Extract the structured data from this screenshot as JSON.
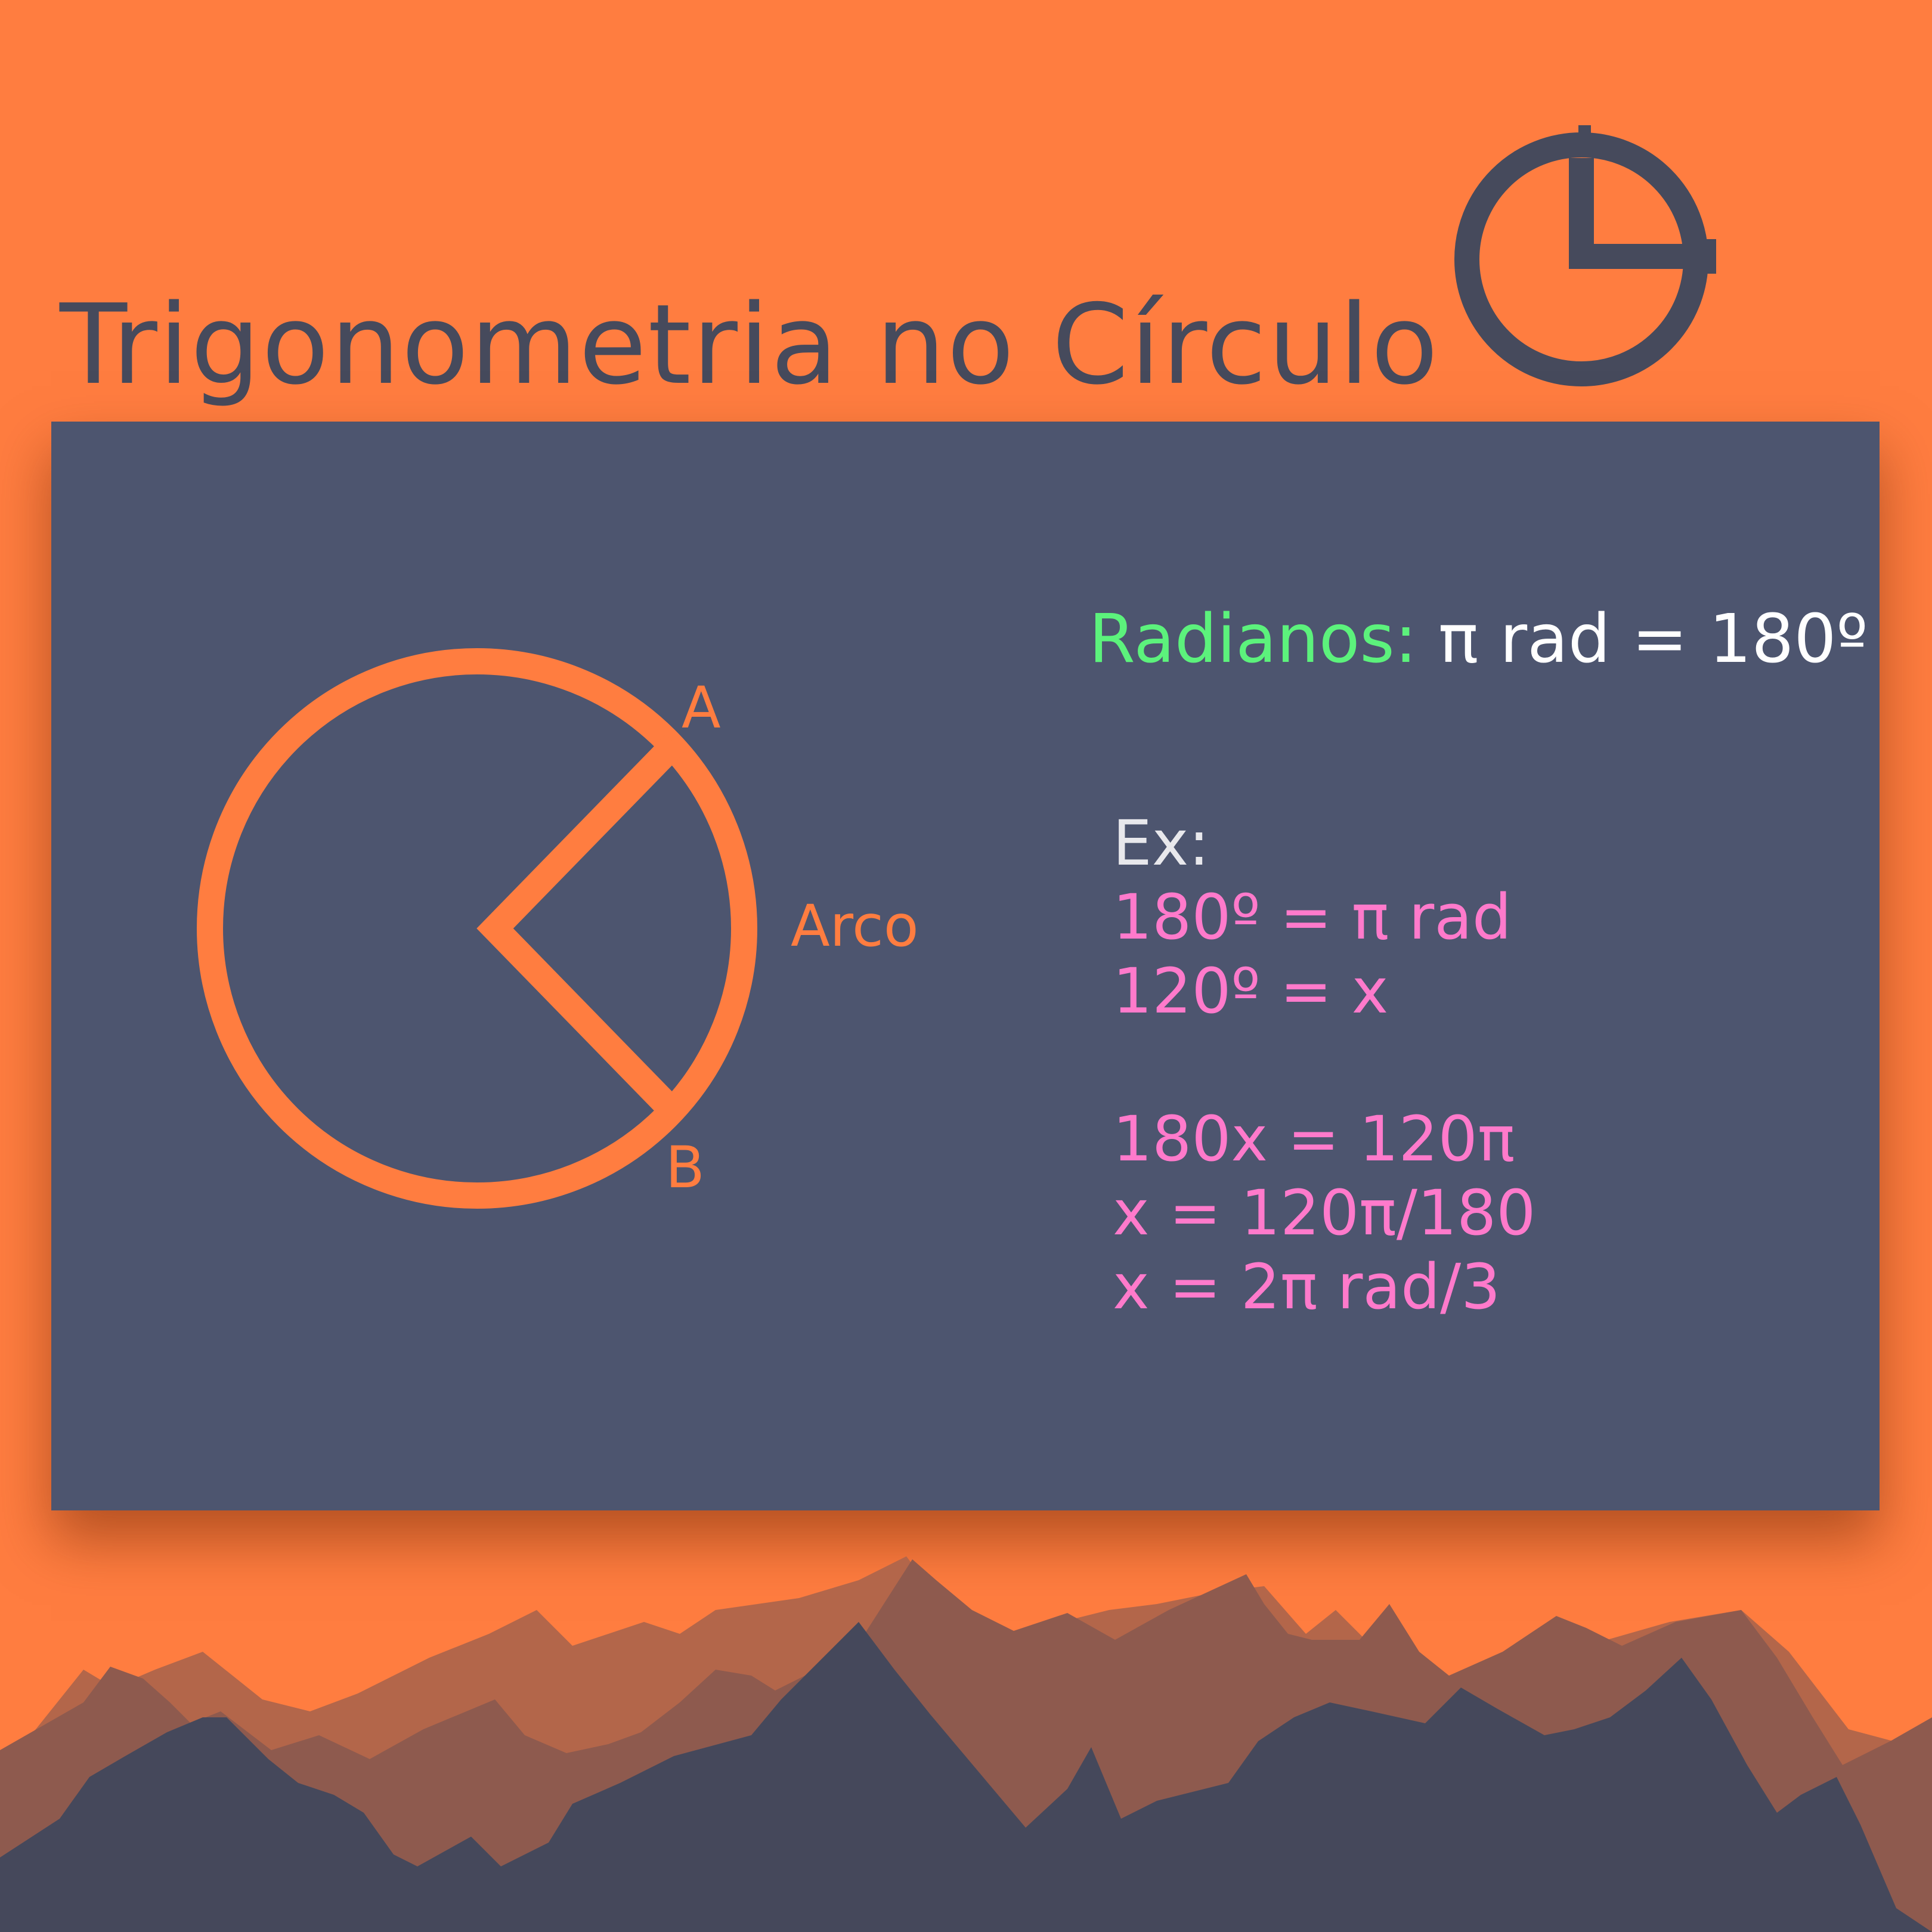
{
  "title": "Trigonometria no Círculo",
  "colors": {
    "background": "#FF7D40",
    "panel": "#4D556F",
    "title": "#464A5C",
    "accent_orange": "#FF7D40",
    "radianos_label": "#5CF27C",
    "formula_white": "#FFFFFF",
    "example_pink": "#FF7ACB"
  },
  "logo": {
    "icon": "clock-quarter-icon"
  },
  "diagram": {
    "point_a": "A",
    "point_b": "B",
    "arc_label": "Arco"
  },
  "radianos": {
    "label": "Radianos:",
    "formula": " π rad = 180º"
  },
  "example": {
    "heading": "Ex:",
    "lines_setup": [
      "180º = π rad",
      "120º = x"
    ],
    "lines_solution": [
      "180x = 120π",
      "x = 120π/180",
      "x = 2π rad/3"
    ]
  }
}
